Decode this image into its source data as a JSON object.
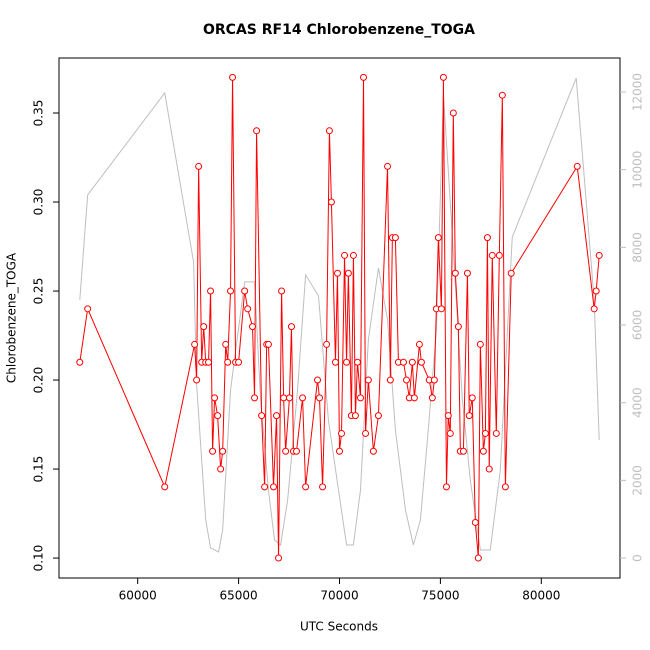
{
  "chart_data": {
    "type": "line",
    "title": "ORCAS RF14 Chlorobenzene_TOGA",
    "x_label": "UTC Seconds",
    "y_label": "Chlorobenzene_TOGA",
    "xlim": [
      56100,
      83900
    ],
    "xticks": [
      60000,
      65000,
      70000,
      75000,
      80000
    ],
    "ylim": [
      0.0888,
      0.3809
    ],
    "yticks": [
      {
        "value": 0.1,
        "label": "0.10"
      },
      0.15,
      {
        "value": 0.2,
        "label": "0.20"
      },
      0.25,
      {
        "value": 0.3,
        "label": "0.30"
      },
      0.35
    ],
    "y2lim": [
      -515,
      12876
    ],
    "y2ticks": [
      0,
      2000,
      4000,
      6000,
      8000,
      10000,
      12000
    ],
    "series": [
      {
        "color": "#bebebe",
        "axis": "y2",
        "x": [
          57130,
          57520,
          61340,
          62770,
          62920,
          63370,
          63610,
          64010,
          64210,
          64600,
          65300,
          65790,
          66090,
          66480,
          66780,
          67080,
          67430,
          67920,
          68320,
          68960,
          69450,
          69950,
          70350,
          70690,
          71040,
          71430,
          71930,
          72380,
          72770,
          73270,
          73660,
          74010,
          74400,
          74800,
          75150,
          75390,
          75740,
          76090,
          76480,
          76980,
          77470,
          77970,
          78560,
          81730,
          82620,
          82870
        ],
        "values": [
          6644,
          9350,
          11975,
          7620,
          4455,
          980,
          260,
          155,
          720,
          4325,
          7110,
          7110,
          4070,
          1750,
          465,
          335,
          1495,
          4325,
          7290,
          6750,
          3555,
          1750,
          335,
          335,
          1750,
          5615,
          7470,
          6130,
          3300,
          1235,
          335,
          980,
          3300,
          5870,
          11925,
          9990,
          7030,
          4070,
          2010,
          205,
          205,
          2265,
          8265,
          12360,
          6644,
          3040
        ]
      },
      {
        "color": "#ff0000",
        "markers": true,
        "x": [
          57130,
          57520,
          61340,
          62820,
          62920,
          63020,
          63170,
          63270,
          63370,
          63510,
          63610,
          63710,
          63810,
          63960,
          64110,
          64210,
          64360,
          64460,
          64600,
          64700,
          64850,
          65000,
          65300,
          65450,
          65690,
          65790,
          65890,
          66140,
          66290,
          66390,
          66480,
          66730,
          66880,
          66980,
          67130,
          67230,
          67330,
          67520,
          67620,
          67720,
          67870,
          68170,
          68320,
          68910,
          69010,
          69160,
          69360,
          69500,
          69600,
          69800,
          69900,
          70000,
          70100,
          70250,
          70350,
          70440,
          70590,
          70690,
          70790,
          70890,
          71040,
          71190,
          71290,
          71430,
          71680,
          71930,
          72380,
          72520,
          72620,
          72770,
          72920,
          73170,
          73320,
          73460,
          73610,
          73710,
          73960,
          74060,
          74450,
          74600,
          74700,
          74800,
          74900,
          75050,
          75150,
          75300,
          75390,
          75490,
          75640,
          75740,
          75890,
          75990,
          76140,
          76340,
          76430,
          76580,
          76730,
          76880,
          76980,
          77130,
          77230,
          77330,
          77420,
          77570,
          77770,
          77920,
          78070,
          78220,
          78510,
          81780,
          82620,
          82720,
          82870
        ],
        "values": [
          0.21,
          0.24,
          0.14,
          0.22,
          0.2,
          0.32,
          0.21,
          0.23,
          0.21,
          0.21,
          0.25,
          0.16,
          0.19,
          0.18,
          0.15,
          0.16,
          0.22,
          0.21,
          0.25,
          0.37,
          0.21,
          0.21,
          0.25,
          0.24,
          0.23,
          0.19,
          0.34,
          0.18,
          0.14,
          0.22,
          0.22,
          0.14,
          0.18,
          0.1,
          0.25,
          0.19,
          0.16,
          0.19,
          0.23,
          0.16,
          0.16,
          0.19,
          0.14,
          0.2,
          0.19,
          0.14,
          0.22,
          0.34,
          0.3,
          0.21,
          0.26,
          0.16,
          0.17,
          0.27,
          0.21,
          0.26,
          0.18,
          0.27,
          0.18,
          0.21,
          0.19,
          0.37,
          0.17,
          0.2,
          0.16,
          0.18,
          0.32,
          0.2,
          0.28,
          0.28,
          0.21,
          0.21,
          0.2,
          0.19,
          0.21,
          0.19,
          0.22,
          0.21,
          0.2,
          0.19,
          0.2,
          0.24,
          0.28,
          0.24,
          0.37,
          0.14,
          0.18,
          0.17,
          0.35,
          0.26,
          0.23,
          0.16,
          0.16,
          0.26,
          0.18,
          0.19,
          0.12,
          0.1,
          0.22,
          0.16,
          0.17,
          0.28,
          0.15,
          0.27,
          0.17,
          0.27,
          0.36,
          0.14,
          0.26,
          0.32,
          0.24,
          0.25,
          0.27
        ]
      }
    ]
  }
}
